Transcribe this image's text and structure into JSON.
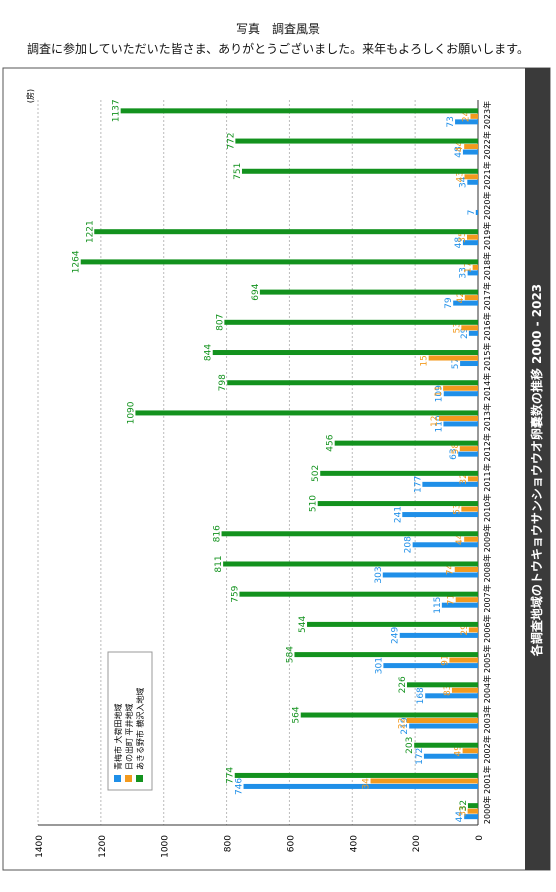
{
  "header": {
    "title": "写真　調査風景",
    "message": "調査に参加していただいた皆さま、ありがとうございました。来年もよろしくお願いします。"
  },
  "chart_data": {
    "type": "bar",
    "orientation": "horizontal",
    "title": "各調査地域のトウキョウサンショウウオ卵嚢数の推移 2000 - 2023",
    "y_label": "(房)",
    "categories": [
      "2000年",
      "2001年",
      "2002年",
      "2003年",
      "2004年",
      "2005年",
      "2006年",
      "2007年",
      "2008年",
      "2009年",
      "2010年",
      "2011年",
      "2012年",
      "2013年",
      "2014年",
      "2015年",
      "2016年",
      "2017年",
      "2018年",
      "2019年",
      "2020年",
      "2021年",
      "2022年",
      "2023年"
    ],
    "series": [
      {
        "name": "青梅市 大荷田地域",
        "color": "#1f8fe8",
        "values": [
          44,
          746,
          172,
          219,
          168,
          301,
          249,
          115,
          303,
          208,
          241,
          177,
          63,
          110,
          109,
          57,
          29,
          79,
          33,
          48,
          7,
          34,
          48,
          73
        ]
      },
      {
        "name": "日の出町 平井地域",
        "color": "#f39a1e",
        "values": [
          33,
          342,
          49,
          227,
          83,
          91,
          29,
          71,
          74,
          44,
          53,
          32,
          58,
          124,
          111,
          157,
          53,
          42,
          17,
          35,
          null,
          43,
          44,
          24
        ]
      },
      {
        "name": "あきる野市 横沢入地域",
        "color": "#13921e",
        "values": [
          32,
          774,
          203,
          564,
          226,
          584,
          544,
          759,
          811,
          816,
          510,
          502,
          456,
          1090,
          798,
          844,
          807,
          694,
          1264,
          1221,
          null,
          751,
          772,
          1137
        ]
      }
    ],
    "ylim": [
      0,
      1400
    ],
    "yticks": [
      0,
      200,
      400,
      600,
      800,
      1000,
      1200,
      1400
    ],
    "grid": true
  }
}
